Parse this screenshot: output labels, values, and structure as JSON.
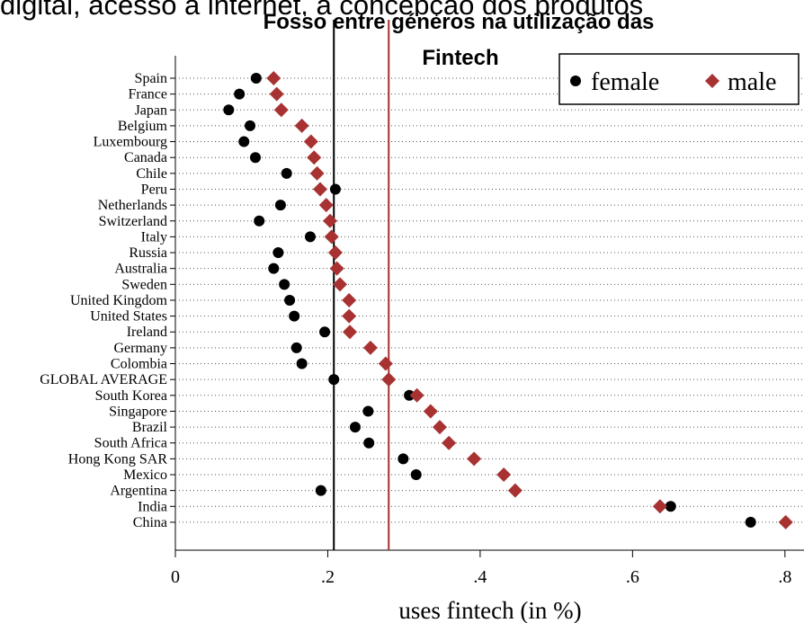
{
  "chart_data": {
    "type": "dot",
    "header_text": "digital, acesso à internet, a concepção dos produtos",
    "title": "Fosso entre géneros na utilização das",
    "title_line2": "Fintech",
    "xlabel": "uses fintech (in %)",
    "categories": [
      "Spain",
      "France",
      "Japan",
      "Belgium",
      "Luxembourg",
      "Canada",
      "Chile",
      "Peru",
      "Netherlands",
      "Switzerland",
      "Italy",
      "Russia",
      "Australia",
      "Sweden",
      "United Kingdom",
      "United States",
      "Ireland",
      "Germany",
      "Colombia",
      "GLOBAL AVERAGE",
      "South Korea",
      "Singapore",
      "Brazil",
      "South Africa",
      "Hong Kong SAR",
      "Mexico",
      "Argentina",
      "India",
      "China"
    ],
    "series": [
      {
        "name": "female",
        "color": "#000000",
        "marker": "circle",
        "values": [
          0.106,
          0.084,
          0.07,
          0.098,
          0.09,
          0.105,
          0.146,
          0.21,
          0.138,
          0.11,
          0.177,
          0.135,
          0.129,
          0.143,
          0.15,
          0.156,
          0.196,
          0.159,
          0.166,
          0.208,
          0.307,
          0.253,
          0.236,
          0.254,
          0.299,
          0.316,
          0.191,
          0.65,
          0.755
        ]
      },
      {
        "name": "male",
        "color": "#a83232",
        "marker": "diamond",
        "values": [
          0.129,
          0.133,
          0.139,
          0.166,
          0.178,
          0.182,
          0.186,
          0.19,
          0.198,
          0.203,
          0.205,
          0.21,
          0.212,
          0.216,
          0.228,
          0.228,
          0.229,
          0.256,
          0.276,
          0.28,
          0.317,
          0.335,
          0.347,
          0.359,
          0.392,
          0.431,
          0.446,
          0.636,
          0.801
        ]
      }
    ],
    "reference_lines": [
      {
        "value": 0.208,
        "color": "#000000"
      },
      {
        "value": 0.28,
        "color": "#a83232"
      }
    ],
    "xlim": [
      0,
      0.825
    ],
    "xticks": [
      0,
      {
        "value": 0.2,
        "label": ".2"
      },
      {
        "value": 0.4,
        "label": ".4"
      },
      {
        "value": 0.6,
        "label": ".6"
      },
      {
        "value": 0.8,
        "label": ".8"
      }
    ],
    "legend": "upper right"
  }
}
